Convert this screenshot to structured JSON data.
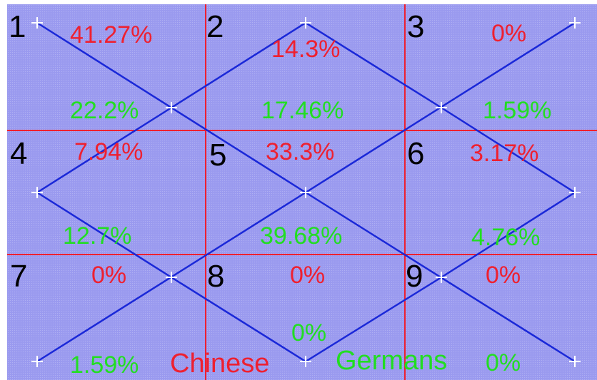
{
  "colors": {
    "background": "#9a9aef",
    "grid_line": "#ee2030",
    "path_line": "#1a28d8",
    "marker": "#ffffff",
    "number": "#000000",
    "chinese": "#ee2030",
    "germans": "#22dd22"
  },
  "cells": [
    {
      "number": "1",
      "red": "41.27%",
      "green": "22.2%"
    },
    {
      "number": "2",
      "red": "14.3%",
      "green": "17.46%"
    },
    {
      "number": "3",
      "red": "0%",
      "green": "1.59%"
    },
    {
      "number": "4",
      "red": "7.94%",
      "green": "12.7%"
    },
    {
      "number": "5",
      "red": "33.3%",
      "green": "39.68%"
    },
    {
      "number": "6",
      "red": "3.17%",
      "green": "4.76%"
    },
    {
      "number": "7",
      "red": "0%",
      "green": "1.59%"
    },
    {
      "number": "8",
      "red": "0%",
      "green": "0%"
    },
    {
      "number": "9",
      "red": "0%",
      "green": "0%"
    }
  ],
  "legend": {
    "chinese": "Chinese",
    "germans": "Germans"
  },
  "marker_icon": "plus-marker-icon"
}
